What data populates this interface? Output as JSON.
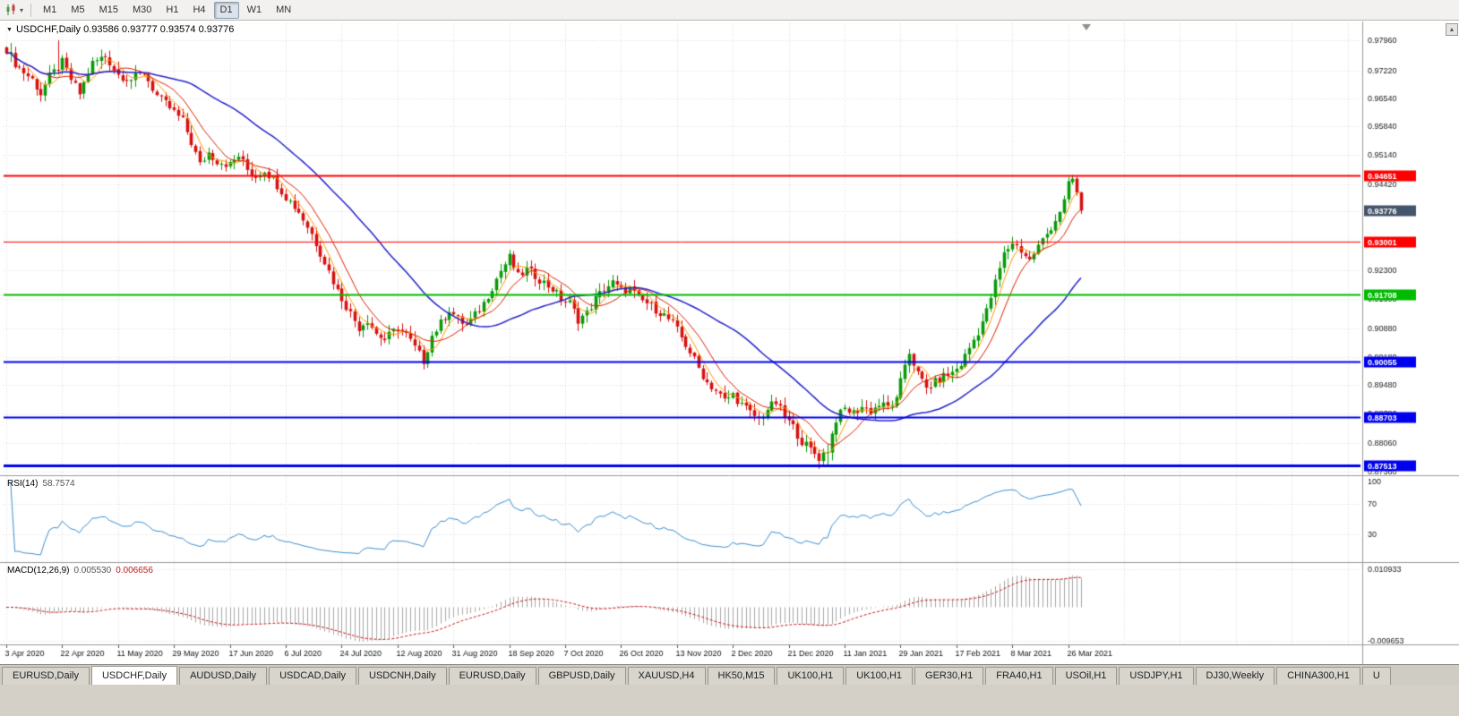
{
  "toolbar": {
    "chart_type_icon": "candlestick-chart-icon",
    "timeframes": [
      {
        "label": "M1",
        "active": false
      },
      {
        "label": "M5",
        "active": false
      },
      {
        "label": "M15",
        "active": false
      },
      {
        "label": "M30",
        "active": false
      },
      {
        "label": "H1",
        "active": false
      },
      {
        "label": "H4",
        "active": false
      },
      {
        "label": "D1",
        "active": true
      },
      {
        "label": "W1",
        "active": false
      },
      {
        "label": "MN",
        "active": false
      }
    ]
  },
  "chart": {
    "title_text": "USDCHF,Daily 0.93586 0.93777 0.93574 0.93776",
    "symbol": "USDCHF",
    "timeframe": "Daily",
    "open": "0.93586",
    "high": "0.93777",
    "low": "0.93574",
    "close": "0.93776"
  },
  "indicators": {
    "rsi": {
      "name": "RSI(14)",
      "value": "58.7574",
      "period": 14,
      "levels": [
        "100",
        "70",
        "30"
      ],
      "color": "#3c8fd0"
    },
    "macd": {
      "name": "MACD(12,26,9)",
      "value_main": "0.005530",
      "value_signal": "0.006656",
      "fast": 12,
      "slow": 26,
      "signal": 9,
      "axis_top": "0.010933",
      "axis_bottom": "-0.009653",
      "hist_color": "#a8a8a8",
      "signal_color": "#cc1111"
    }
  },
  "chart_data": {
    "type": "candlestick",
    "symbol": "USDCHF",
    "timeframe": "Daily",
    "candle_count": 251,
    "candles_per_label": 13,
    "ylim": [
      0.8731,
      0.9825
    ],
    "y_ticks": [
      "0.97960",
      "0.97220",
      "0.96540",
      "0.95840",
      "0.95140",
      "0.94420",
      "0.93760",
      "0.93060",
      "0.92300",
      "0.91600",
      "0.90880",
      "0.90180",
      "0.89480",
      "0.88780",
      "0.88060",
      "0.87360"
    ],
    "x_labels": [
      "3 Apr 2020",
      "22 Apr 2020",
      "11 May 2020",
      "29 May 2020",
      "17 Jun 2020",
      "6 Jul 2020",
      "24 Jul 2020",
      "12 Aug 2020",
      "31 Aug 2020",
      "18 Sep 2020",
      "7 Oct 2020",
      "26 Oct 2020",
      "13 Nov 2020",
      "2 Dec 2020",
      "21 Dec 2020",
      "11 Jan 2021",
      "29 Jan 2021",
      "17 Feb 2021",
      "8 Mar 2021",
      "26 Mar 2021"
    ],
    "up_color": "#0a9a0a",
    "down_color": "#d81010",
    "price_anchors": [
      [
        0,
        0.9775
      ],
      [
        2,
        0.974
      ],
      [
        4,
        0.9718
      ],
      [
        6,
        0.97
      ],
      [
        8,
        0.9665
      ],
      [
        10,
        0.9706
      ],
      [
        13,
        0.9742
      ],
      [
        15,
        0.97
      ],
      [
        17,
        0.9665
      ],
      [
        20,
        0.974
      ],
      [
        23,
        0.9758
      ],
      [
        26,
        0.9712
      ],
      [
        29,
        0.97
      ],
      [
        32,
        0.9716
      ],
      [
        35,
        0.966
      ],
      [
        38,
        0.963
      ],
      [
        41,
        0.9598
      ],
      [
        43,
        0.9545
      ],
      [
        45,
        0.949
      ],
      [
        47,
        0.952
      ],
      [
        49,
        0.95
      ],
      [
        52,
        0.949
      ],
      [
        54,
        0.9512
      ],
      [
        56,
        0.9478
      ],
      [
        58,
        0.9462
      ],
      [
        60,
        0.9478
      ],
      [
        62,
        0.9455
      ],
      [
        65,
        0.9412
      ],
      [
        68,
        0.9375
      ],
      [
        71,
        0.932
      ],
      [
        74,
        0.9252
      ],
      [
        77,
        0.918
      ],
      [
        80,
        0.9125
      ],
      [
        82,
        0.909
      ],
      [
        84,
        0.911
      ],
      [
        86,
        0.9075
      ],
      [
        88,
        0.906
      ],
      [
        91,
        0.909
      ],
      [
        93,
        0.9072
      ],
      [
        95,
        0.904
      ],
      [
        97,
        0.9008
      ],
      [
        99,
        0.907
      ],
      [
        101,
        0.91
      ],
      [
        103,
        0.9135
      ],
      [
        105,
        0.911
      ],
      [
        107,
        0.9095
      ],
      [
        109,
        0.912
      ],
      [
        111,
        0.915
      ],
      [
        113,
        0.919
      ],
      [
        115,
        0.923
      ],
      [
        117,
        0.9262
      ],
      [
        119,
        0.9215
      ],
      [
        121,
        0.9232
      ],
      [
        123,
        0.9218
      ],
      [
        125,
        0.92
      ],
      [
        127,
        0.9185
      ],
      [
        129,
        0.916
      ],
      [
        131,
        0.915
      ],
      [
        133,
        0.911
      ],
      [
        135,
        0.9125
      ],
      [
        137,
        0.916
      ],
      [
        139,
        0.9185
      ],
      [
        141,
        0.92
      ],
      [
        143,
        0.918
      ],
      [
        145,
        0.9186
      ],
      [
        147,
        0.916
      ],
      [
        149,
        0.915
      ],
      [
        151,
        0.9135
      ],
      [
        153,
        0.912
      ],
      [
        155,
        0.91
      ],
      [
        157,
        0.9065
      ],
      [
        159,
        0.903
      ],
      [
        161,
        0.899
      ],
      [
        163,
        0.8955
      ],
      [
        165,
        0.8935
      ],
      [
        167,
        0.891
      ],
      [
        169,
        0.8925
      ],
      [
        171,
        0.89
      ],
      [
        173,
        0.888
      ],
      [
        175,
        0.8865
      ],
      [
        177,
        0.889
      ],
      [
        179,
        0.8905
      ],
      [
        181,
        0.887
      ],
      [
        183,
        0.8845
      ],
      [
        185,
        0.881
      ],
      [
        187,
        0.879
      ],
      [
        189,
        0.877
      ],
      [
        191,
        0.879
      ],
      [
        193,
        0.8865
      ],
      [
        195,
        0.889
      ],
      [
        197,
        0.888
      ],
      [
        199,
        0.8895
      ],
      [
        201,
        0.8885
      ],
      [
        203,
        0.89
      ],
      [
        205,
        0.8895
      ],
      [
        207,
        0.891
      ],
      [
        209,
        0.9
      ],
      [
        210,
        0.903
      ],
      [
        212,
        0.8975
      ],
      [
        214,
        0.894
      ],
      [
        216,
        0.8955
      ],
      [
        218,
        0.897
      ],
      [
        220,
        0.8978
      ],
      [
        222,
        0.9
      ],
      [
        224,
        0.904
      ],
      [
        226,
        0.908
      ],
      [
        228,
        0.913
      ],
      [
        230,
        0.92
      ],
      [
        232,
        0.927
      ],
      [
        234,
        0.93
      ],
      [
        236,
        0.928
      ],
      [
        238,
        0.9255
      ],
      [
        240,
        0.929
      ],
      [
        242,
        0.932
      ],
      [
        244,
        0.9355
      ],
      [
        246,
        0.94
      ],
      [
        247,
        0.944
      ],
      [
        248,
        0.9455
      ],
      [
        249,
        0.942
      ],
      [
        250,
        0.93776
      ]
    ],
    "spikes": [
      {
        "i": 1,
        "high": 0.979
      },
      {
        "i": 12,
        "high": 0.9796
      },
      {
        "i": 97,
        "low": 0.9
      },
      {
        "i": 117,
        "high": 0.9272
      },
      {
        "i": 191,
        "low": 0.87513
      },
      {
        "i": 248,
        "high": 0.94651
      }
    ],
    "ma_lines": [
      {
        "period": 5,
        "color": "#ff9900",
        "width": 1
      },
      {
        "period": 10,
        "color": "#dd2200",
        "width": 1
      },
      {
        "period": 34,
        "color": "#2424cc",
        "width": 1.5
      }
    ],
    "h_lines": [
      {
        "price": 0.94651,
        "label": "0.94651",
        "color": "#ff0000",
        "width": 2
      },
      {
        "price": 0.93001,
        "label": "0.93001",
        "color": "#ff0000",
        "width": 1
      },
      {
        "price": 0.91708,
        "label": "0.91708",
        "color": "#00bb00",
        "width": 2
      },
      {
        "price": 0.90055,
        "label": "0.90055",
        "color": "#0000ee",
        "width": 2
      },
      {
        "price": 0.88703,
        "label": "0.88703",
        "color": "#0000ee",
        "width": 2
      },
      {
        "price": 0.87513,
        "label": "0.87513",
        "color": "#0000ee",
        "width": 3
      }
    ],
    "current_price": {
      "label": "0.93776",
      "price": 0.93776,
      "bg": "#44546a"
    }
  },
  "tabs": [
    {
      "label": "EURUSD,Daily",
      "active": false
    },
    {
      "label": "USDCHF,Daily",
      "active": true
    },
    {
      "label": "AUDUSD,Daily",
      "active": false
    },
    {
      "label": "USDCAD,Daily",
      "active": false
    },
    {
      "label": "USDCNH,Daily",
      "active": false
    },
    {
      "label": "EURUSD,Daily",
      "active": false
    },
    {
      "label": "GBPUSD,Daily",
      "active": false
    },
    {
      "label": "XAUUSD,H4",
      "active": false
    },
    {
      "label": "HK50,M15",
      "active": false
    },
    {
      "label": "UK100,H1",
      "active": false
    },
    {
      "label": "UK100,H1",
      "active": false
    },
    {
      "label": "GER30,H1",
      "active": false
    },
    {
      "label": "FRA40,H1",
      "active": false
    },
    {
      "label": "USOil,H1",
      "active": false
    },
    {
      "label": "USDJPY,H1",
      "active": false
    },
    {
      "label": "DJ30,Weekly",
      "active": false
    },
    {
      "label": "CHINA300,H1",
      "active": false
    },
    {
      "label": "U",
      "active": false
    }
  ]
}
